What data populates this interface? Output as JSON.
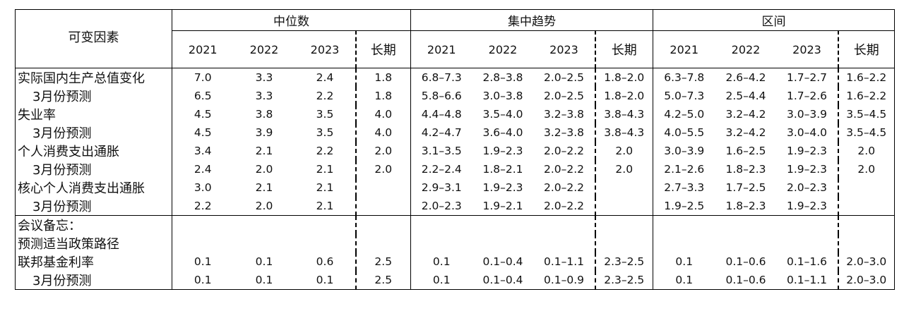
{
  "header": {
    "variable_label": "可变因素",
    "groups": [
      "中位数",
      "集中趋势",
      "区间"
    ],
    "years": [
      "2021",
      "2022",
      "2023"
    ],
    "long_run": "长期"
  },
  "rows": [
    {
      "label": "实际国内生产总值变化",
      "sub": false,
      "values": [
        "7.0",
        "3.3",
        "2.4",
        "1.8",
        "6.8–7.3",
        "2.8–3.8",
        "2.0–2.5",
        "1.8–2.0",
        "6.3–7.8",
        "2.6–4.2",
        "1.7–2.7",
        "1.6–2.2"
      ]
    },
    {
      "label": "3月份预测",
      "sub": true,
      "values": [
        "6.5",
        "3.3",
        "2.2",
        "1.8",
        "5.8–6.6",
        "3.0–3.8",
        "2.0–2.5",
        "1.8–2.0",
        "5.0–7.3",
        "2.5–4.4",
        "1.7–2.6",
        "1.6–2.2"
      ]
    },
    {
      "label": "失业率",
      "sub": false,
      "values": [
        "4.5",
        "3.8",
        "3.5",
        "4.0",
        "4.4–4.8",
        "3.5–4.0",
        "3.2–3.8",
        "3.8–4.3",
        "4.2–5.0",
        "3.2–4.2",
        "3.0–3.9",
        "3.5–4.5"
      ]
    },
    {
      "label": "3月份预测",
      "sub": true,
      "values": [
        "4.5",
        "3.9",
        "3.5",
        "4.0",
        "4.2–4.7",
        "3.6–4.0",
        "3.2–3.8",
        "3.8–4.3",
        "4.0–5.5",
        "3.2–4.2",
        "3.0–4.0",
        "3.5–4.5"
      ]
    },
    {
      "label": "个人消费支出通胀",
      "sub": false,
      "values": [
        "3.4",
        "2.1",
        "2.2",
        "2.0",
        "3.1–3.5",
        "1.9–2.3",
        "2.0–2.2",
        "2.0",
        "3.0–3.9",
        "1.6–2.5",
        "1.9–2.3",
        "2.0"
      ]
    },
    {
      "label": "3月份预测",
      "sub": true,
      "values": [
        "2.4",
        "2.0",
        "2.1",
        "2.0",
        "2.2–2.4",
        "1.8–2.1",
        "2.0–2.2",
        "2.0",
        "2.1–2.6",
        "1.8–2.3",
        "1.9–2.3",
        "2.0"
      ]
    },
    {
      "label": "核心个人消费支出通胀",
      "sub": false,
      "values": [
        "3.0",
        "2.1",
        "2.1",
        "",
        "2.9–3.1",
        "1.9–2.3",
        "2.0–2.2",
        "",
        "2.7–3.3",
        "1.7–2.5",
        "2.0–2.3",
        ""
      ]
    },
    {
      "label": "3月份预测",
      "sub": true,
      "values": [
        "2.2",
        "2.0",
        "2.1",
        "",
        "2.0–2.3",
        "1.9–2.1",
        "2.0–2.2",
        "",
        "1.9–2.5",
        "1.8–2.3",
        "1.9–2.3",
        ""
      ]
    }
  ],
  "memo": {
    "label": "会议备忘：",
    "subtitle": "预测适当政策路径",
    "rows": [
      {
        "label": "联邦基金利率",
        "sub": false,
        "values": [
          "0.1",
          "0.1",
          "0.6",
          "2.5",
          "0.1",
          "0.1–0.4",
          "0.1–1.1",
          "2.3–2.5",
          "0.1",
          "0.1–0.6",
          "0.1–1.6",
          "2.0–3.0"
        ]
      },
      {
        "label": "3月份预测",
        "sub": true,
        "values": [
          "0.1",
          "0.1",
          "0.1",
          "2.5",
          "0.1",
          "0.1–0.4",
          "0.1–0.9",
          "2.3–2.5",
          "0.1",
          "0.1–0.6",
          "0.1–1.1",
          "2.0–3.0"
        ]
      }
    ]
  }
}
